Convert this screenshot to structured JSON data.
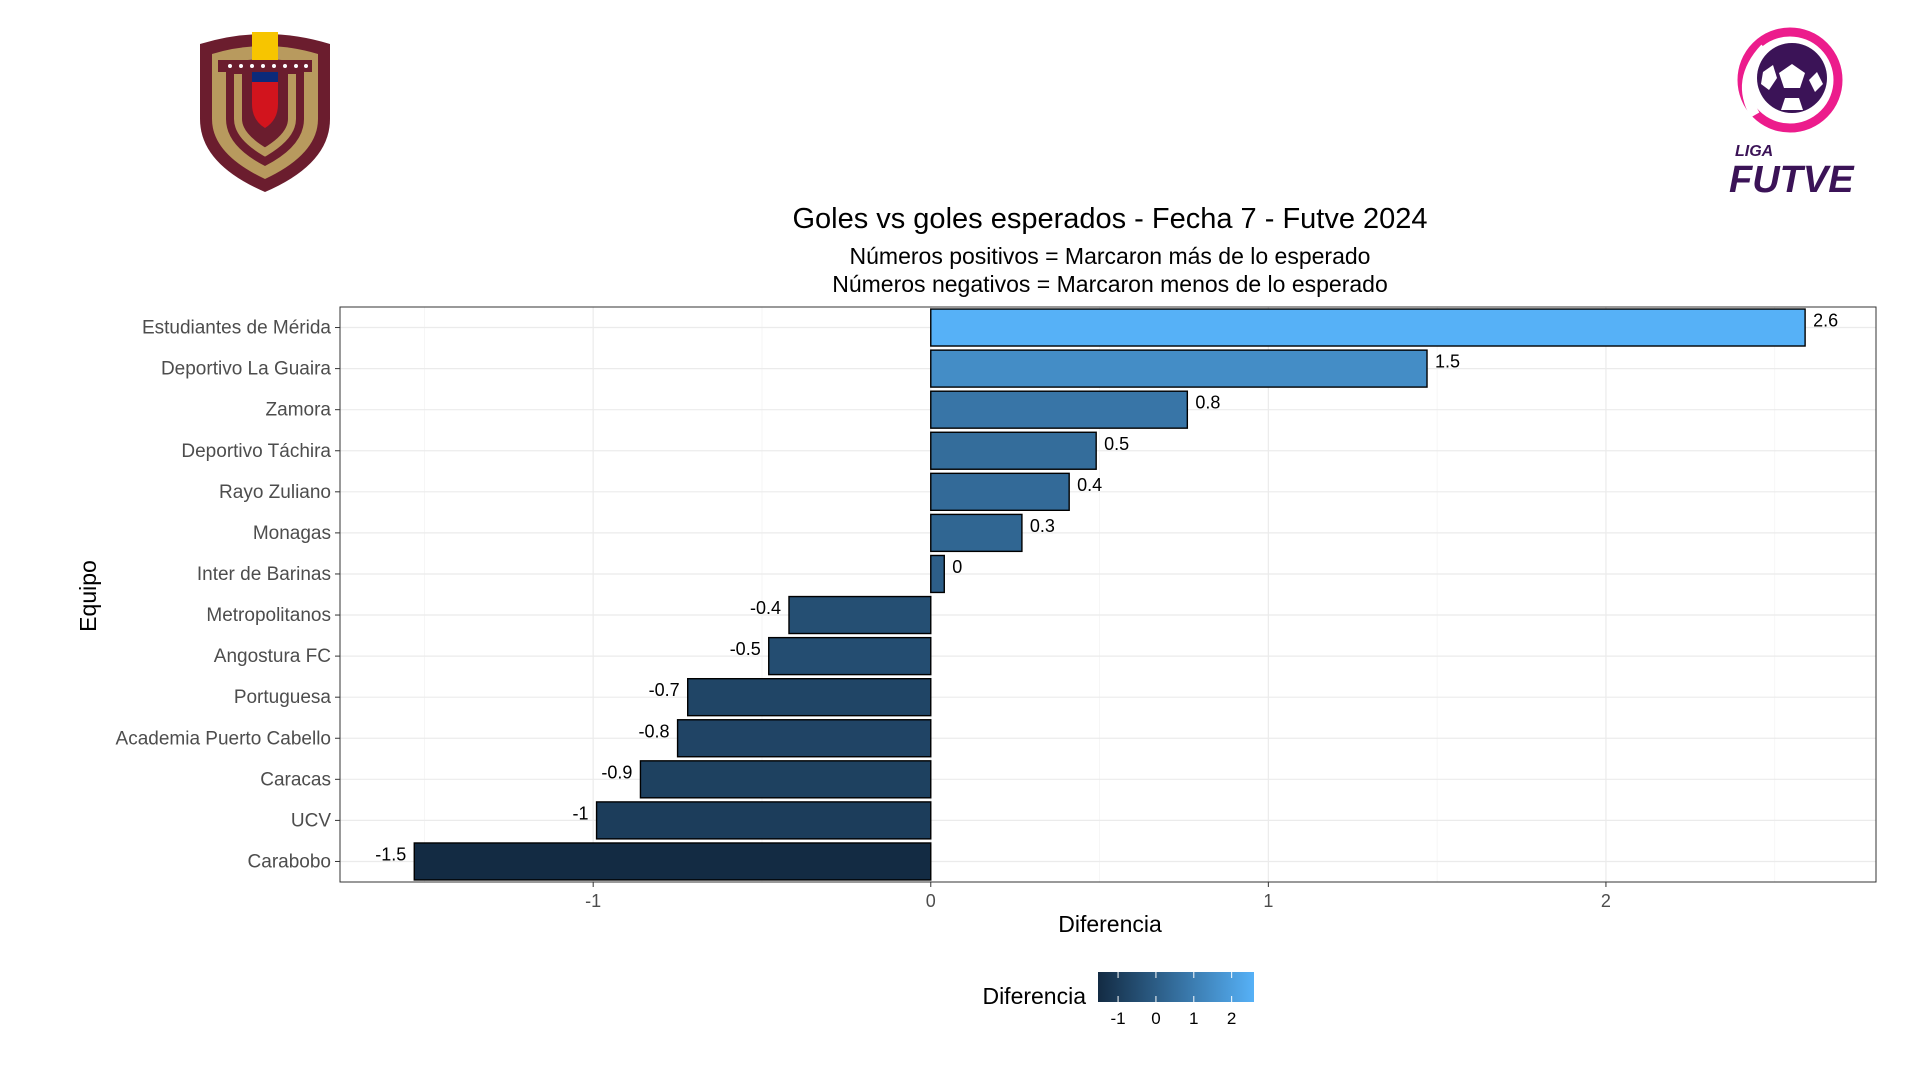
{
  "logos": {
    "left": {
      "name": "Federación Venezolana de Fútbol crest",
      "colors": [
        "#6b1d2e",
        "#b89a5e",
        "#f7c500",
        "#0b2a7a",
        "#d2141d"
      ]
    },
    "right": {
      "text_top": "LIGA",
      "text_bottom": "FUTVE",
      "colors": [
        "#ec1c8c",
        "#3b1357"
      ]
    }
  },
  "chart_data": {
    "type": "bar",
    "orientation": "horizontal",
    "title": "Goles vs goles esperados - Fecha 7 - Futve 2024",
    "subtitle_lines": [
      "Números positivos =  Marcaron más de lo esperado",
      "Números negativos = Marcaron menos de lo esperado"
    ],
    "xlabel": "Diferencia",
    "ylabel": "Equipo",
    "xlim": [
      -1.75,
      2.8
    ],
    "xticks": [
      -1,
      0,
      1,
      2
    ],
    "xtick_labels": [
      "-1",
      "0",
      "1",
      "2"
    ],
    "grid": true,
    "categories": [
      "Estudiantes de Mérida",
      "Deportivo La Guaira",
      "Zamora",
      "Deportivo Táchira",
      "Rayo Zuliano",
      "Monagas",
      "Inter de Barinas",
      "Metropolitanos",
      "Angostura FC",
      "Portuguesa",
      "Academia Puerto Cabello",
      "Caracas",
      "UCV",
      "Carabobo"
    ],
    "values": [
      2.59,
      1.47,
      0.76,
      0.49,
      0.41,
      0.27,
      0.04,
      -0.42,
      -0.48,
      -0.72,
      -0.75,
      -0.86,
      -0.99,
      -1.53
    ],
    "value_labels": [
      "2.6",
      "1.5",
      "0.8",
      "0.5",
      "0.4",
      "0.3",
      "0",
      "-0.4",
      "-0.5",
      "-0.7",
      "-0.8",
      "-0.9",
      "-1",
      "-1.5"
    ],
    "colorscale": {
      "low": "#132b43",
      "high": "#56b1f7"
    },
    "legend": {
      "title": "Diferencia",
      "placement": "bottom",
      "ticks": [
        -1,
        0,
        1,
        2
      ],
      "tick_labels": [
        "-1",
        "0",
        "1",
        "2"
      ]
    }
  }
}
